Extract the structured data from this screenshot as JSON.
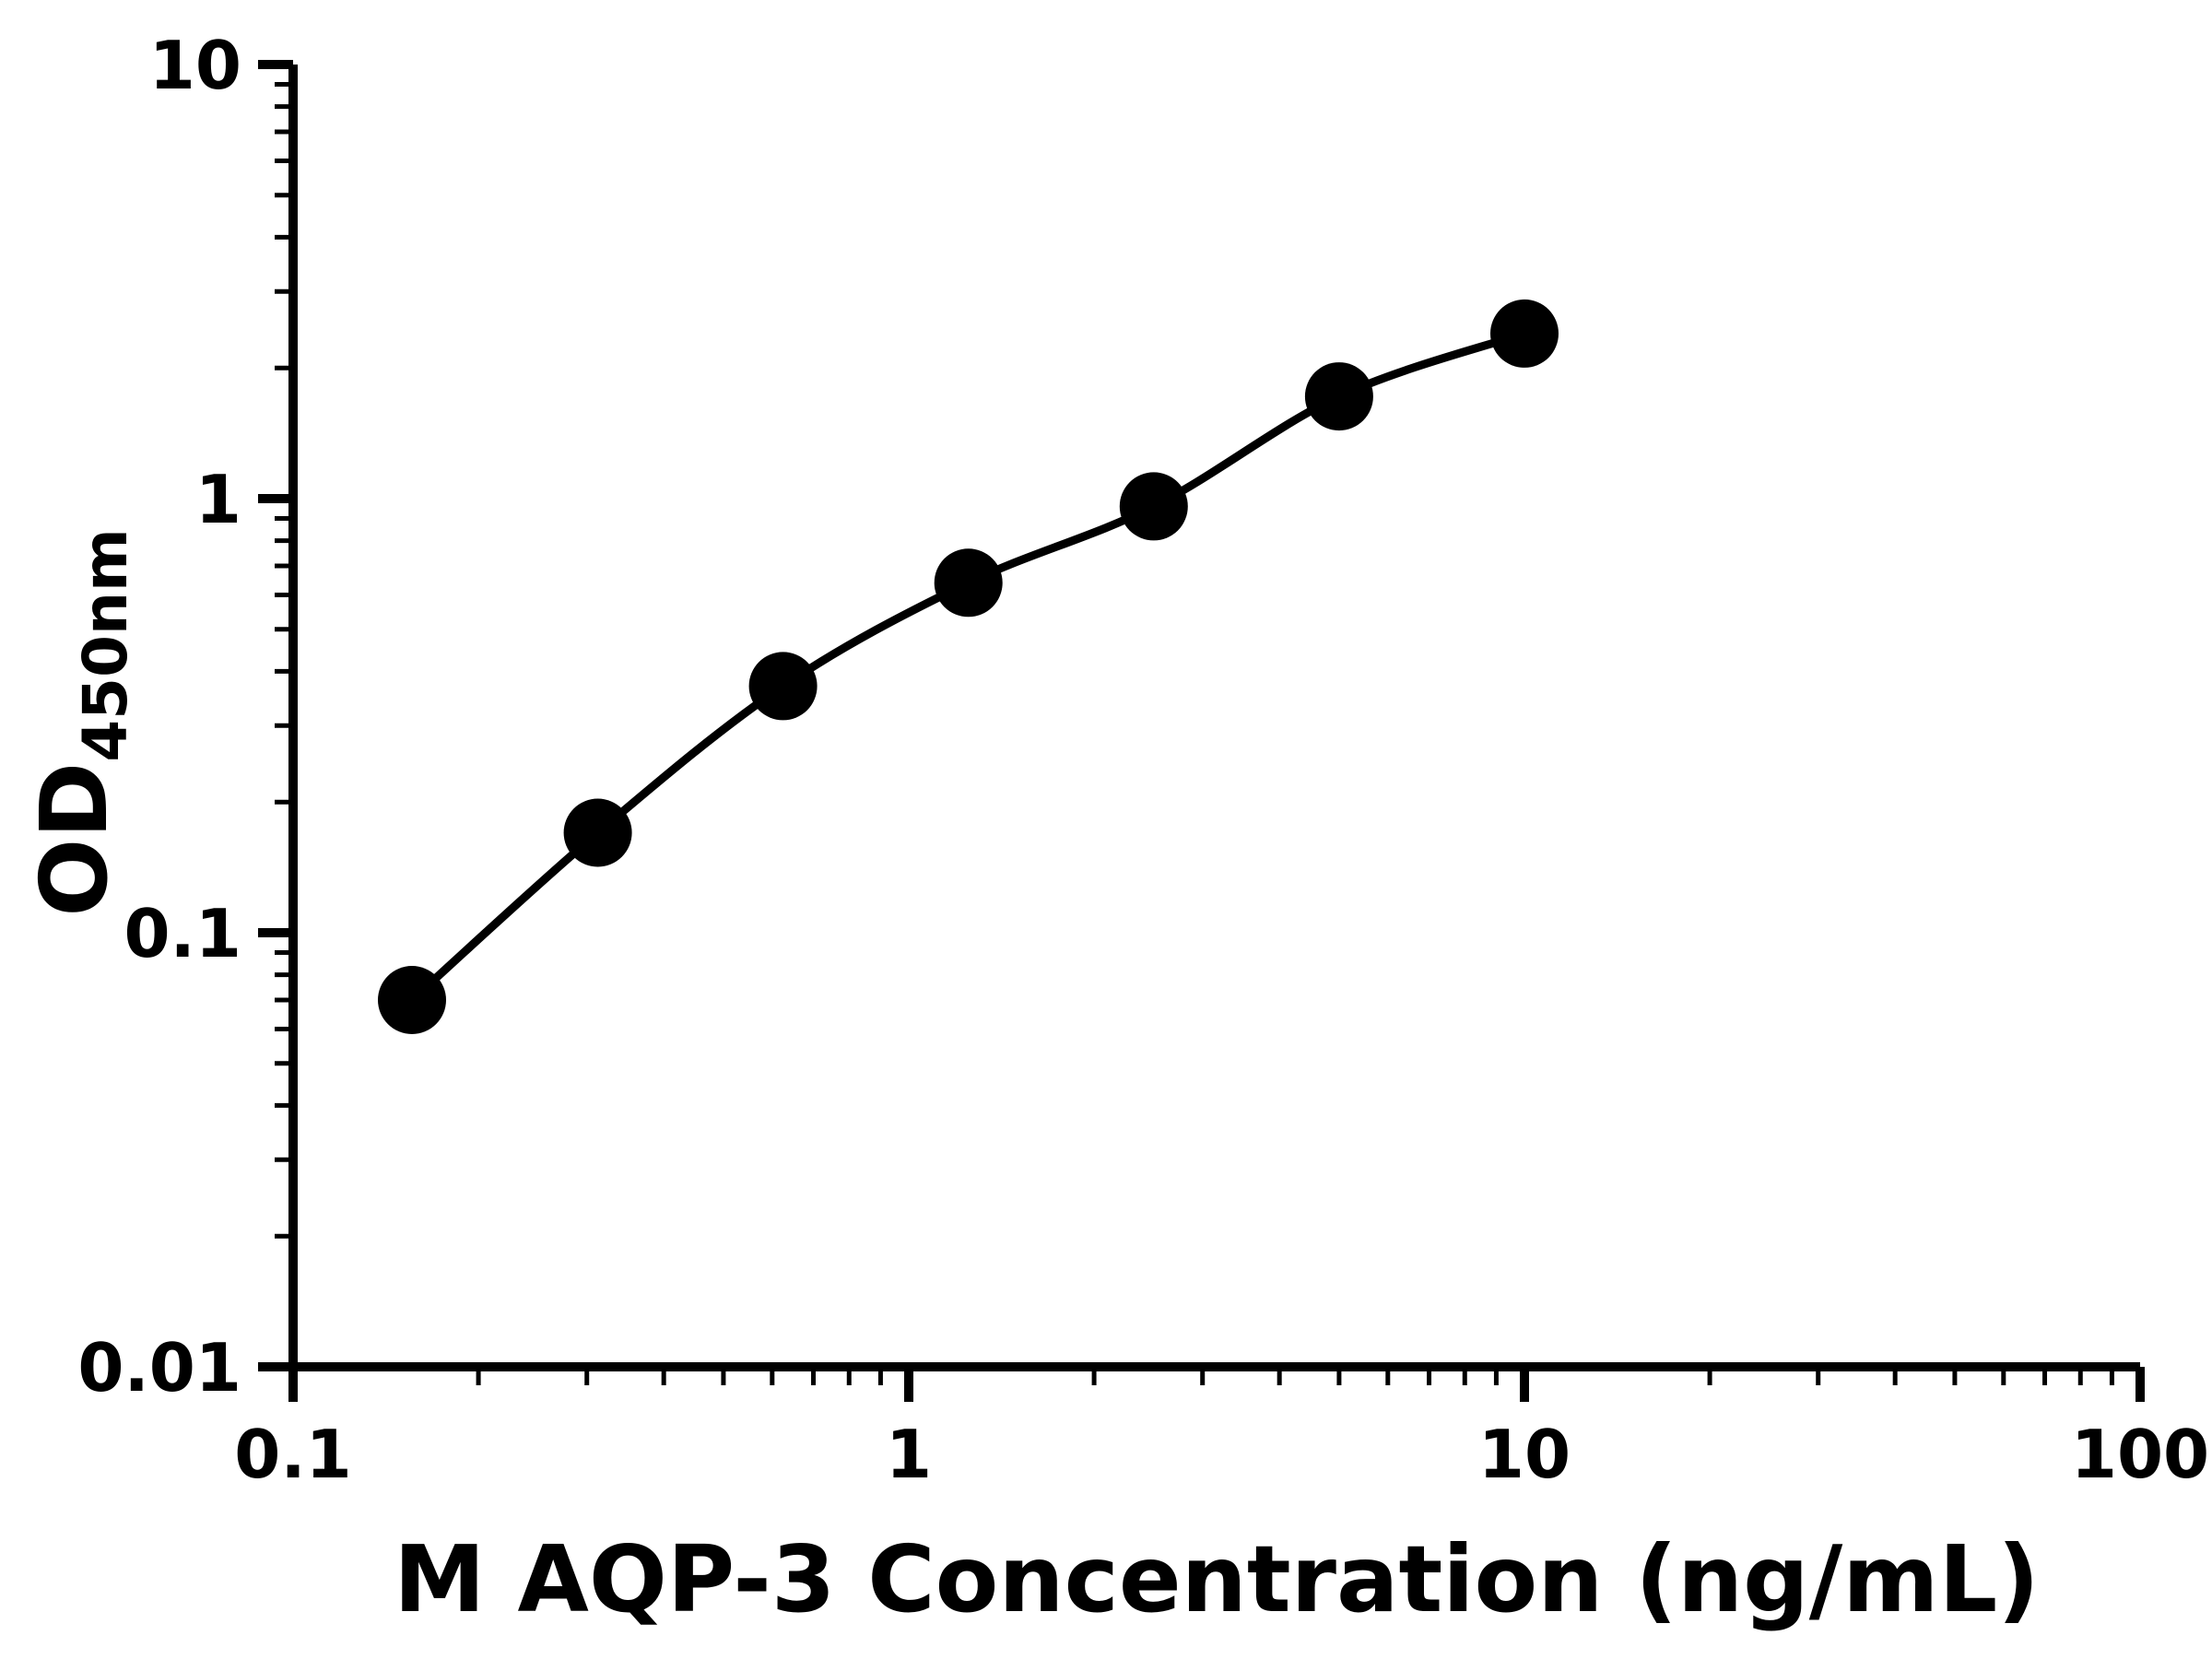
{
  "figure": {
    "background": "#ffffff",
    "ink": "#000000"
  },
  "chart_data": {
    "type": "scatter",
    "subtype": "elisa-standard-curve",
    "title": "",
    "xlabel": "M AQP-3 Concentration (ng/mL)",
    "ylabel_main": "OD",
    "ylabel_sub": "450nm",
    "x_scale": "log10",
    "y_scale": "log10",
    "xlim": [
      0.1,
      100
    ],
    "ylim": [
      0.01,
      10
    ],
    "grid": false,
    "legend": "none",
    "minor_ticks": "log",
    "marker": "filled-circle",
    "marker_color": "#000000",
    "line_color": "#000000",
    "x_ticks": [
      {
        "value": 0.1,
        "label": "0.1"
      },
      {
        "value": 1,
        "label": "1"
      },
      {
        "value": 10,
        "label": "10"
      },
      {
        "value": 100,
        "label": "100"
      }
    ],
    "y_ticks": [
      {
        "value": 0.01,
        "label": "0.01"
      },
      {
        "value": 0.1,
        "label": "0.1"
      },
      {
        "value": 1,
        "label": "1"
      },
      {
        "value": 10,
        "label": "10"
      }
    ],
    "points": [
      {
        "x": 0.156,
        "y": 0.07
      },
      {
        "x": 0.3125,
        "y": 0.17
      },
      {
        "x": 0.625,
        "y": 0.37
      },
      {
        "x": 1.25,
        "y": 0.64
      },
      {
        "x": 2.5,
        "y": 0.96
      },
      {
        "x": 5,
        "y": 1.72
      },
      {
        "x": 10,
        "y": 2.4
      }
    ]
  }
}
